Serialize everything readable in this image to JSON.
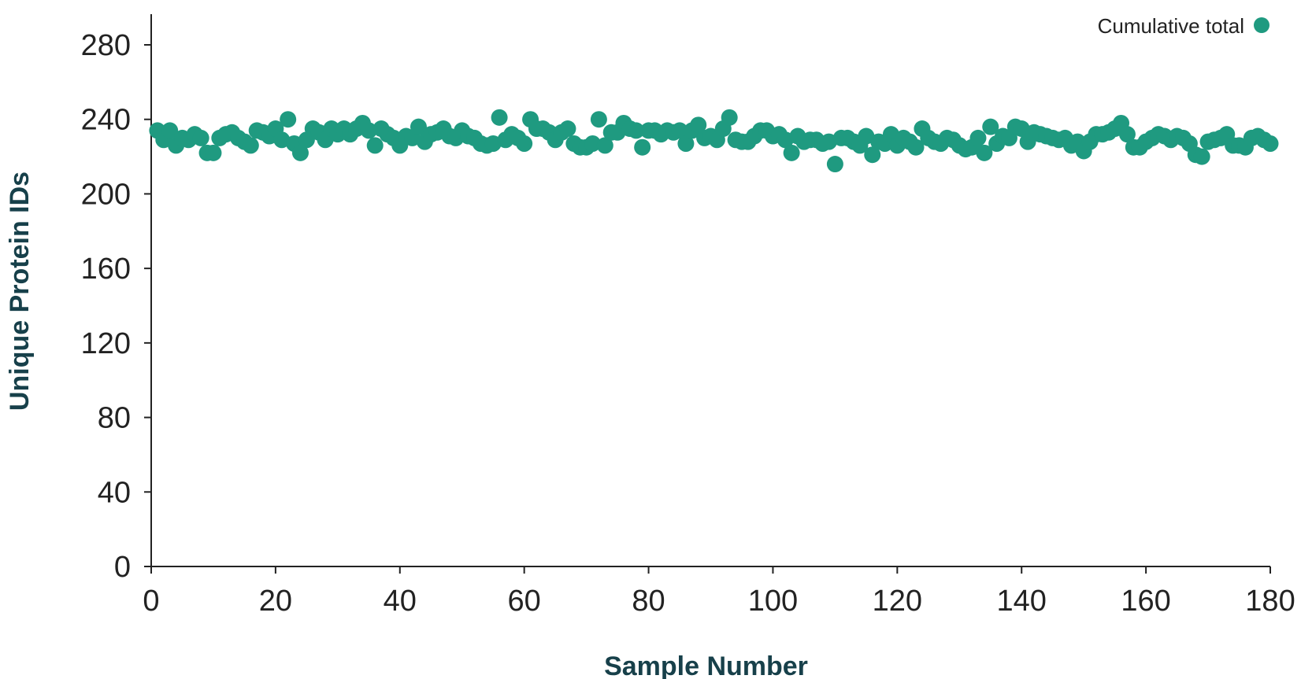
{
  "chart_data": {
    "type": "scatter",
    "xlabel": "Sample Number",
    "ylabel": "Unique Protein IDs",
    "xlim": [
      0,
      180
    ],
    "ylim": [
      0,
      280
    ],
    "xticks": [
      "0",
      "20",
      "40",
      "60",
      "80",
      "100",
      "120",
      "140",
      "160",
      "180"
    ],
    "yticks": [
      "0",
      "40",
      "80",
      "120",
      "160",
      "200",
      "240",
      "280"
    ],
    "grid": false,
    "legend_position": "top-right",
    "colors": {
      "series": "#1f9a80",
      "axis": "#222222",
      "axis_title": "#17404a"
    },
    "series": [
      {
        "name": "Cumulative total",
        "x": [
          1,
          2,
          3,
          4,
          5,
          6,
          7,
          8,
          9,
          10,
          11,
          12,
          13,
          14,
          15,
          16,
          17,
          18,
          19,
          20,
          21,
          22,
          23,
          24,
          25,
          26,
          27,
          28,
          29,
          30,
          31,
          32,
          33,
          34,
          35,
          36,
          37,
          38,
          39,
          40,
          41,
          42,
          43,
          44,
          45,
          46,
          47,
          48,
          49,
          50,
          51,
          52,
          53,
          54,
          55,
          56,
          57,
          58,
          59,
          60,
          61,
          62,
          63,
          64,
          65,
          66,
          67,
          68,
          69,
          70,
          71,
          72,
          73,
          74,
          75,
          76,
          77,
          78,
          79,
          80,
          81,
          82,
          83,
          84,
          85,
          86,
          87,
          88,
          89,
          90,
          91,
          92,
          93,
          94,
          95,
          96,
          97,
          98,
          99,
          100,
          101,
          102,
          103,
          104,
          105,
          106,
          107,
          108,
          109,
          110,
          111,
          112,
          113,
          114,
          115,
          116,
          117,
          118,
          119,
          120,
          121,
          122,
          123,
          124,
          125,
          126,
          127,
          128,
          129,
          130,
          131,
          132,
          133,
          134,
          135,
          136,
          137,
          138,
          139,
          140,
          141,
          142,
          143,
          144,
          145,
          146,
          147,
          148,
          149,
          150,
          151,
          152,
          153,
          154,
          155,
          156,
          157,
          158,
          159,
          160,
          161,
          162,
          163,
          164,
          165,
          166,
          167,
          168,
          169,
          170,
          171,
          172,
          173,
          174,
          175,
          176,
          177,
          178,
          179,
          180
        ],
        "y": [
          234,
          229,
          234,
          226,
          230,
          229,
          232,
          230,
          222,
          222,
          230,
          232,
          233,
          230,
          228,
          226,
          234,
          233,
          231,
          235,
          229,
          240,
          227,
          222,
          229,
          235,
          233,
          229,
          235,
          232,
          235,
          232,
          235,
          238,
          234,
          226,
          235,
          232,
          230,
          226,
          231,
          230,
          236,
          228,
          232,
          233,
          235,
          231,
          230,
          234,
          231,
          230,
          227,
          226,
          227,
          241,
          229,
          232,
          230,
          227,
          240,
          235,
          235,
          233,
          229,
          233,
          235,
          227,
          225,
          225,
          227,
          240,
          226,
          233,
          233,
          238,
          235,
          234,
          225,
          234,
          234,
          232,
          234,
          233,
          234,
          227,
          234,
          237,
          230,
          231,
          229,
          235,
          241,
          229,
          228,
          228,
          231,
          234,
          234,
          231,
          232,
          229,
          222,
          231,
          228,
          229,
          229,
          227,
          228,
          216,
          230,
          230,
          228,
          226,
          231,
          221,
          228,
          227,
          232,
          226,
          230,
          228,
          225,
          235,
          230,
          228,
          227,
          230,
          229,
          226,
          224,
          225,
          230,
          222,
          236,
          227,
          231,
          230,
          236,
          235,
          228,
          233,
          232,
          231,
          230,
          229,
          230,
          226,
          228,
          223,
          228,
          232,
          232,
          233,
          235,
          238,
          232,
          225,
          225,
          228,
          230,
          232,
          231,
          229,
          231,
          230,
          227,
          221,
          220,
          228,
          229,
          230,
          232,
          226,
          226,
          225,
          230,
          231,
          229,
          227
        ]
      }
    ]
  }
}
